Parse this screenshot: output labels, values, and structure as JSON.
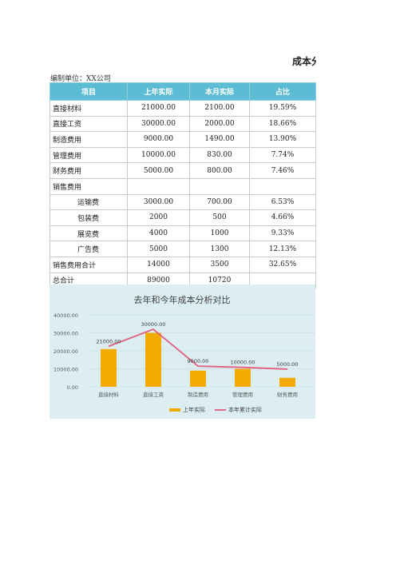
{
  "header": {
    "title": "成本分析表",
    "unit": "编制单位：XX公司"
  },
  "table": {
    "columns": [
      "项目",
      "上年实际",
      "本月实际",
      "占比"
    ],
    "rows": [
      {
        "name": "直接材料",
        "prev": "21000.00",
        "cur": "2100.00",
        "ratio": "19.59%",
        "indent": false
      },
      {
        "name": "直接工资",
        "prev": "30000.00",
        "cur": "2000.00",
        "ratio": "18.66%",
        "indent": false
      },
      {
        "name": "制造费用",
        "prev": "9000.00",
        "cur": "1490.00",
        "ratio": "13.90%",
        "indent": false
      },
      {
        "name": "管理费用",
        "prev": "10000.00",
        "cur": "830.00",
        "ratio": "7.74%",
        "indent": false
      },
      {
        "name": "财务费用",
        "prev": "5000.00",
        "cur": "800.00",
        "ratio": "7.46%",
        "indent": false
      },
      {
        "name": "销售费用",
        "prev": "",
        "cur": "",
        "ratio": "",
        "indent": false
      },
      {
        "name": "运输费",
        "prev": "3000.00",
        "cur": "700.00",
        "ratio": "6.53%",
        "indent": true
      },
      {
        "name": "包装费",
        "prev": "2000",
        "cur": "500",
        "ratio": "4.66%",
        "indent": true
      },
      {
        "name": "展览费",
        "prev": "4000",
        "cur": "1000",
        "ratio": "9.33%",
        "indent": true
      },
      {
        "name": "广告费",
        "prev": "5000",
        "cur": "1300",
        "ratio": "12.13%",
        "indent": true
      },
      {
        "name": "销售费用合计",
        "prev": "14000",
        "cur": "3500",
        "ratio": "32.65%",
        "indent": false
      },
      {
        "name": "总合计",
        "prev": "89000",
        "cur": "10720",
        "ratio": "",
        "indent": false
      }
    ]
  },
  "chart_data": {
    "type": "bar",
    "title": "去年和今年成本分析对比",
    "categories": [
      "直接材料",
      "直接工资",
      "制造费用",
      "管理费用",
      "财务费用"
    ],
    "ylim": [
      0,
      40000
    ],
    "yticks": [
      "0.00",
      "10000.00",
      "20000.00",
      "30000.00",
      "40000.00"
    ],
    "series": [
      {
        "name": "上年实际",
        "kind": "bar",
        "color": "#f2ab00",
        "values": [
          21000,
          30000,
          9000,
          10000,
          5000
        ],
        "labels": [
          "21000.00",
          "30000.00",
          "9000.00",
          "10000.00",
          "5000.00"
        ]
      },
      {
        "name": "本年累计实际",
        "kind": "line",
        "color": "#e0607e",
        "values": [
          22500,
          32000,
          11500,
          10800,
          9800
        ]
      }
    ],
    "legend": "bottom",
    "grid": true
  }
}
